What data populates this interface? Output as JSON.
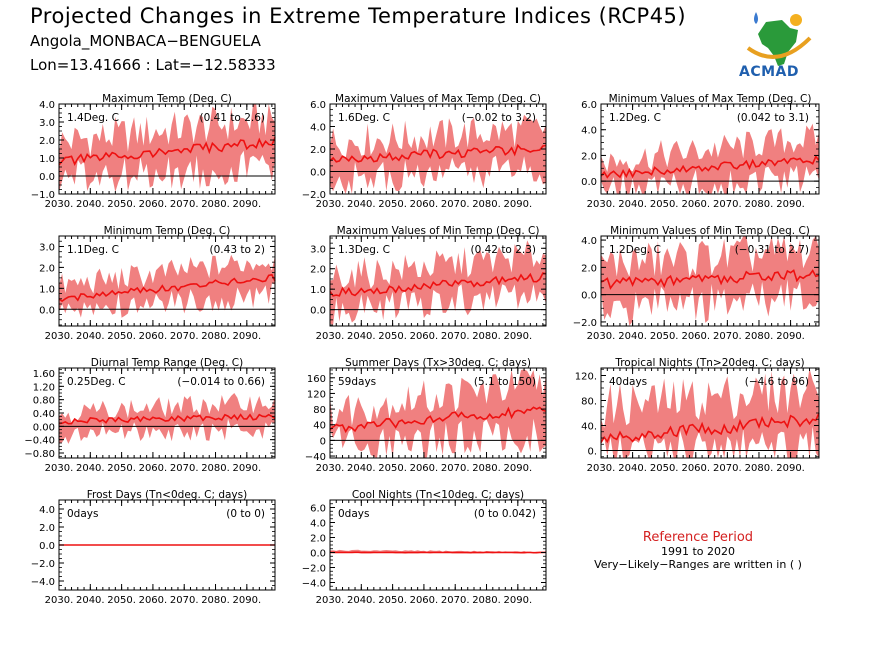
{
  "header": {
    "title": "Projected Changes in Extreme Temperature Indices (RCP45)",
    "location": "Angola_MONBACA−BENGUELA",
    "coords": "Lon=13.41666 : Lat=−12.58333"
  },
  "logo": {
    "text": "ACMAD"
  },
  "reference": {
    "title": "Reference Period",
    "years": "1991 to 2020",
    "note": "Very−Likely−Ranges are written in ( )"
  },
  "colors": {
    "line": "#ee1111",
    "band": "#f08080",
    "zero": "#000000"
  },
  "chart_data": [
    {
      "type": "line",
      "title": "Maximum Temp (Deg. C)",
      "annotation": "1.4Deg. C",
      "range_text": "(0.41 to 2.6)",
      "x_range": [
        2030,
        2099
      ],
      "ylim": [
        -1.0,
        4.0
      ],
      "yticks": [
        -1.0,
        0.0,
        1.0,
        2.0,
        3.0,
        4.0
      ],
      "ytick_labels": [
        "−1.0",
        "0.0",
        "1.0",
        "2.0",
        "3.0",
        "4.0"
      ],
      "xtick_labels": [
        "2030.",
        "2040.",
        "2050.",
        "2060.",
        "2070.",
        "2080.",
        "2090."
      ],
      "series": [
        {
          "x_start": 2030,
          "x_end": 2099,
          "mean_start": 0.8,
          "mean_end": 1.9,
          "low_start": -0.2,
          "low_end": 0.6,
          "high_start": 1.9,
          "high_end": 3.2
        }
      ]
    },
    {
      "type": "line",
      "title": "Maximum Values of Max Temp (Deg. C)",
      "annotation": "1.6Deg. C",
      "range_text": "(−0.02 to 3.2)",
      "x_range": [
        2030,
        2099
      ],
      "ylim": [
        -2.0,
        6.0
      ],
      "yticks": [
        -2.0,
        0.0,
        2.0,
        4.0,
        6.0
      ],
      "ytick_labels": [
        "−2.0",
        "0.0",
        "2.0",
        "4.0",
        "6.0"
      ],
      "xtick_labels": [
        "2030.",
        "2040.",
        "2050.",
        "2060.",
        "2070.",
        "2080.",
        "2090."
      ],
      "series": [
        {
          "x_start": 2030,
          "x_end": 2099,
          "mean_start": 1.0,
          "mean_end": 2.1,
          "low_start": -0.8,
          "low_end": 0.2,
          "high_start": 2.6,
          "high_end": 3.8
        }
      ]
    },
    {
      "type": "line",
      "title": "Minimum Values of Max Temp (Deg. C)",
      "annotation": "1.2Deg. C",
      "range_text": "(0.042 to 3.1)",
      "x_range": [
        2030,
        2099
      ],
      "ylim": [
        -1.0,
        6.0
      ],
      "yticks": [
        0.0,
        2.0,
        4.0,
        6.0
      ],
      "ytick_labels": [
        "0.0",
        "2.0",
        "4.0",
        "6.0"
      ],
      "xtick_labels": [
        "2030.",
        "2040.",
        "2050.",
        "2060.",
        "2070.",
        "2080.",
        "2090."
      ],
      "series": [
        {
          "x_start": 2030,
          "x_end": 2099,
          "mean_start": 0.5,
          "mean_end": 1.7,
          "low_start": -0.6,
          "low_end": 0.2,
          "high_start": 1.5,
          "high_end": 3.4
        }
      ]
    },
    {
      "type": "line",
      "title": "Minimum Temp (Deg. C)",
      "annotation": "1.1Deg. C",
      "range_text": "(0.43 to 2)",
      "x_range": [
        2030,
        2099
      ],
      "ylim": [
        -0.8,
        3.5
      ],
      "yticks": [
        0.0,
        1.0,
        2.0,
        3.0
      ],
      "ytick_labels": [
        "0.0",
        "1.0",
        "2.0",
        "3.0"
      ],
      "xtick_labels": [
        "2030.",
        "2040.",
        "2050.",
        "2060.",
        "2070.",
        "2080.",
        "2090."
      ],
      "series": [
        {
          "x_start": 2030,
          "x_end": 2099,
          "mean_start": 0.5,
          "mean_end": 1.5,
          "low_start": 0.0,
          "low_end": 0.7,
          "high_start": 1.1,
          "high_end": 2.4
        }
      ]
    },
    {
      "type": "line",
      "title": "Maximum Values of Min Temp (Deg. C)",
      "annotation": "1.3Deg. C",
      "range_text": "(0.42 to 2.3)",
      "x_range": [
        2030,
        2099
      ],
      "ylim": [
        -0.8,
        3.6
      ],
      "yticks": [
        0.0,
        1.0,
        2.0,
        3.0
      ],
      "ytick_labels": [
        "0.0",
        "1.0",
        "2.0",
        "3.0"
      ],
      "xtick_labels": [
        "2030.",
        "2040.",
        "2050.",
        "2060.",
        "2070.",
        "2080.",
        "2090."
      ],
      "series": [
        {
          "x_start": 2030,
          "x_end": 2099,
          "mean_start": 0.8,
          "mean_end": 1.6,
          "low_start": 0.0,
          "low_end": 0.8,
          "high_start": 1.6,
          "high_end": 2.7
        }
      ]
    },
    {
      "type": "line",
      "title": "Minimum Values of Min Temp (Deg. C)",
      "annotation": "1.2Deg. C",
      "range_text": "(−0.31 to 2.7)",
      "x_range": [
        2030,
        2099
      ],
      "ylim": [
        -2.3,
        4.3
      ],
      "yticks": [
        -2.0,
        0.0,
        2.0,
        4.0
      ],
      "ytick_labels": [
        "−2.0",
        "0.0",
        "2.0",
        "4.0"
      ],
      "xtick_labels": [
        "2030.",
        "2040.",
        "2050.",
        "2060.",
        "2070.",
        "2080.",
        "2090."
      ],
      "series": [
        {
          "x_start": 2030,
          "x_end": 2099,
          "mean_start": 0.8,
          "mean_end": 1.5,
          "low_start": -1.0,
          "low_end": -0.2,
          "high_start": 2.3,
          "high_end": 3.2
        }
      ]
    },
    {
      "type": "line",
      "title": "Diurnal Temp Range (Deg. C)",
      "annotation": "0.25Deg. C",
      "range_text": "(−0.014 to 0.66)",
      "x_range": [
        2030,
        2099
      ],
      "ylim": [
        -0.95,
        1.75
      ],
      "yticks": [
        -0.8,
        -0.4,
        0.0,
        0.4,
        0.8,
        1.2,
        1.6
      ],
      "ytick_labels": [
        "−0.80",
        "−0.40",
        "0.00",
        "0.40",
        "0.80",
        "1.20",
        "1.60"
      ],
      "xtick_labels": [
        "2030.",
        "2040.",
        "2050.",
        "2060.",
        "2070.",
        "2080.",
        "2090."
      ],
      "series": [
        {
          "x_start": 2030,
          "x_end": 2099,
          "mean_start": 0.15,
          "mean_end": 0.3,
          "low_start": -0.25,
          "low_end": -0.05,
          "high_start": 0.4,
          "high_end": 0.75
        }
      ]
    },
    {
      "type": "line",
      "title": "Summer Days (Tx>30deg. C; days)",
      "annotation": "59days",
      "range_text": "(5.1 to 150)",
      "x_range": [
        2030,
        2099
      ],
      "ylim": [
        -45,
        185
      ],
      "yticks": [
        -40,
        0,
        40,
        80,
        120,
        160
      ],
      "ytick_labels": [
        "−40",
        "0",
        "40",
        "80",
        "120",
        "160"
      ],
      "xtick_labels": [
        "2030.",
        "2040.",
        "2050.",
        "2060.",
        "2070.",
        "2080.",
        "2090."
      ],
      "series": [
        {
          "x_start": 2030,
          "x_end": 2099,
          "mean_start": 30,
          "mean_end": 80,
          "low_start": -10,
          "low_end": 15,
          "high_start": 75,
          "high_end": 150
        }
      ]
    },
    {
      "type": "line",
      "title": "Tropical Nights (Tn>20deg. C; days)",
      "annotation": "40days",
      "range_text": "(−4.6 to 96)",
      "x_range": [
        2030,
        2099
      ],
      "ylim": [
        -12,
        132
      ],
      "yticks": [
        0,
        40,
        80,
        120
      ],
      "ytick_labels": [
        "0.",
        "40.",
        "80.",
        "120."
      ],
      "xtick_labels": [
        "2030.",
        "2040.",
        "2050.",
        "2060.",
        "2070.",
        "2080.",
        "2090."
      ],
      "series": [
        {
          "x_start": 2030,
          "x_end": 2099,
          "mean_start": 20,
          "mean_end": 50,
          "low_start": -5,
          "low_end": 5,
          "high_start": 70,
          "high_end": 100
        }
      ]
    },
    {
      "type": "line",
      "title": "Frost Days (Tn<0deg. C; days)",
      "annotation": "0days",
      "range_text": "(0 to 0)",
      "x_range": [
        2030,
        2099
      ],
      "ylim": [
        -5.0,
        5.0
      ],
      "yticks": [
        -4.0,
        -2.0,
        0.0,
        2.0,
        4.0
      ],
      "ytick_labels": [
        "−4.0",
        "−2.0",
        "0.0",
        "2.0",
        "4.0"
      ],
      "xtick_labels": [
        "2030.",
        "2040.",
        "2050.",
        "2060.",
        "2070.",
        "2080.",
        "2090."
      ],
      "series": [
        {
          "x_start": 2030,
          "x_end": 2099,
          "mean_start": 0,
          "mean_end": 0,
          "low_start": 0,
          "low_end": 0,
          "high_start": 0,
          "high_end": 0
        }
      ]
    },
    {
      "type": "line",
      "title": "Cool Nights (Tn<10deg. C; days)",
      "annotation": "0days",
      "range_text": "(0 to 0.042)",
      "x_range": [
        2030,
        2099
      ],
      "ylim": [
        -5.0,
        7.0
      ],
      "yticks": [
        -4.0,
        -2.0,
        0.0,
        2.0,
        4.0,
        6.0
      ],
      "ytick_labels": [
        "−4.0",
        "−2.0",
        "0.0",
        "2.0",
        "4.0",
        "6.0"
      ],
      "xtick_labels": [
        "2030.",
        "2040.",
        "2050.",
        "2060.",
        "2070.",
        "2080.",
        "2090."
      ],
      "series": [
        {
          "x_start": 2030,
          "x_end": 2099,
          "mean_start": 0,
          "mean_end": 0,
          "low_start": 0,
          "low_end": 0,
          "high_start": 0.3,
          "high_end": 0.1
        }
      ]
    }
  ]
}
